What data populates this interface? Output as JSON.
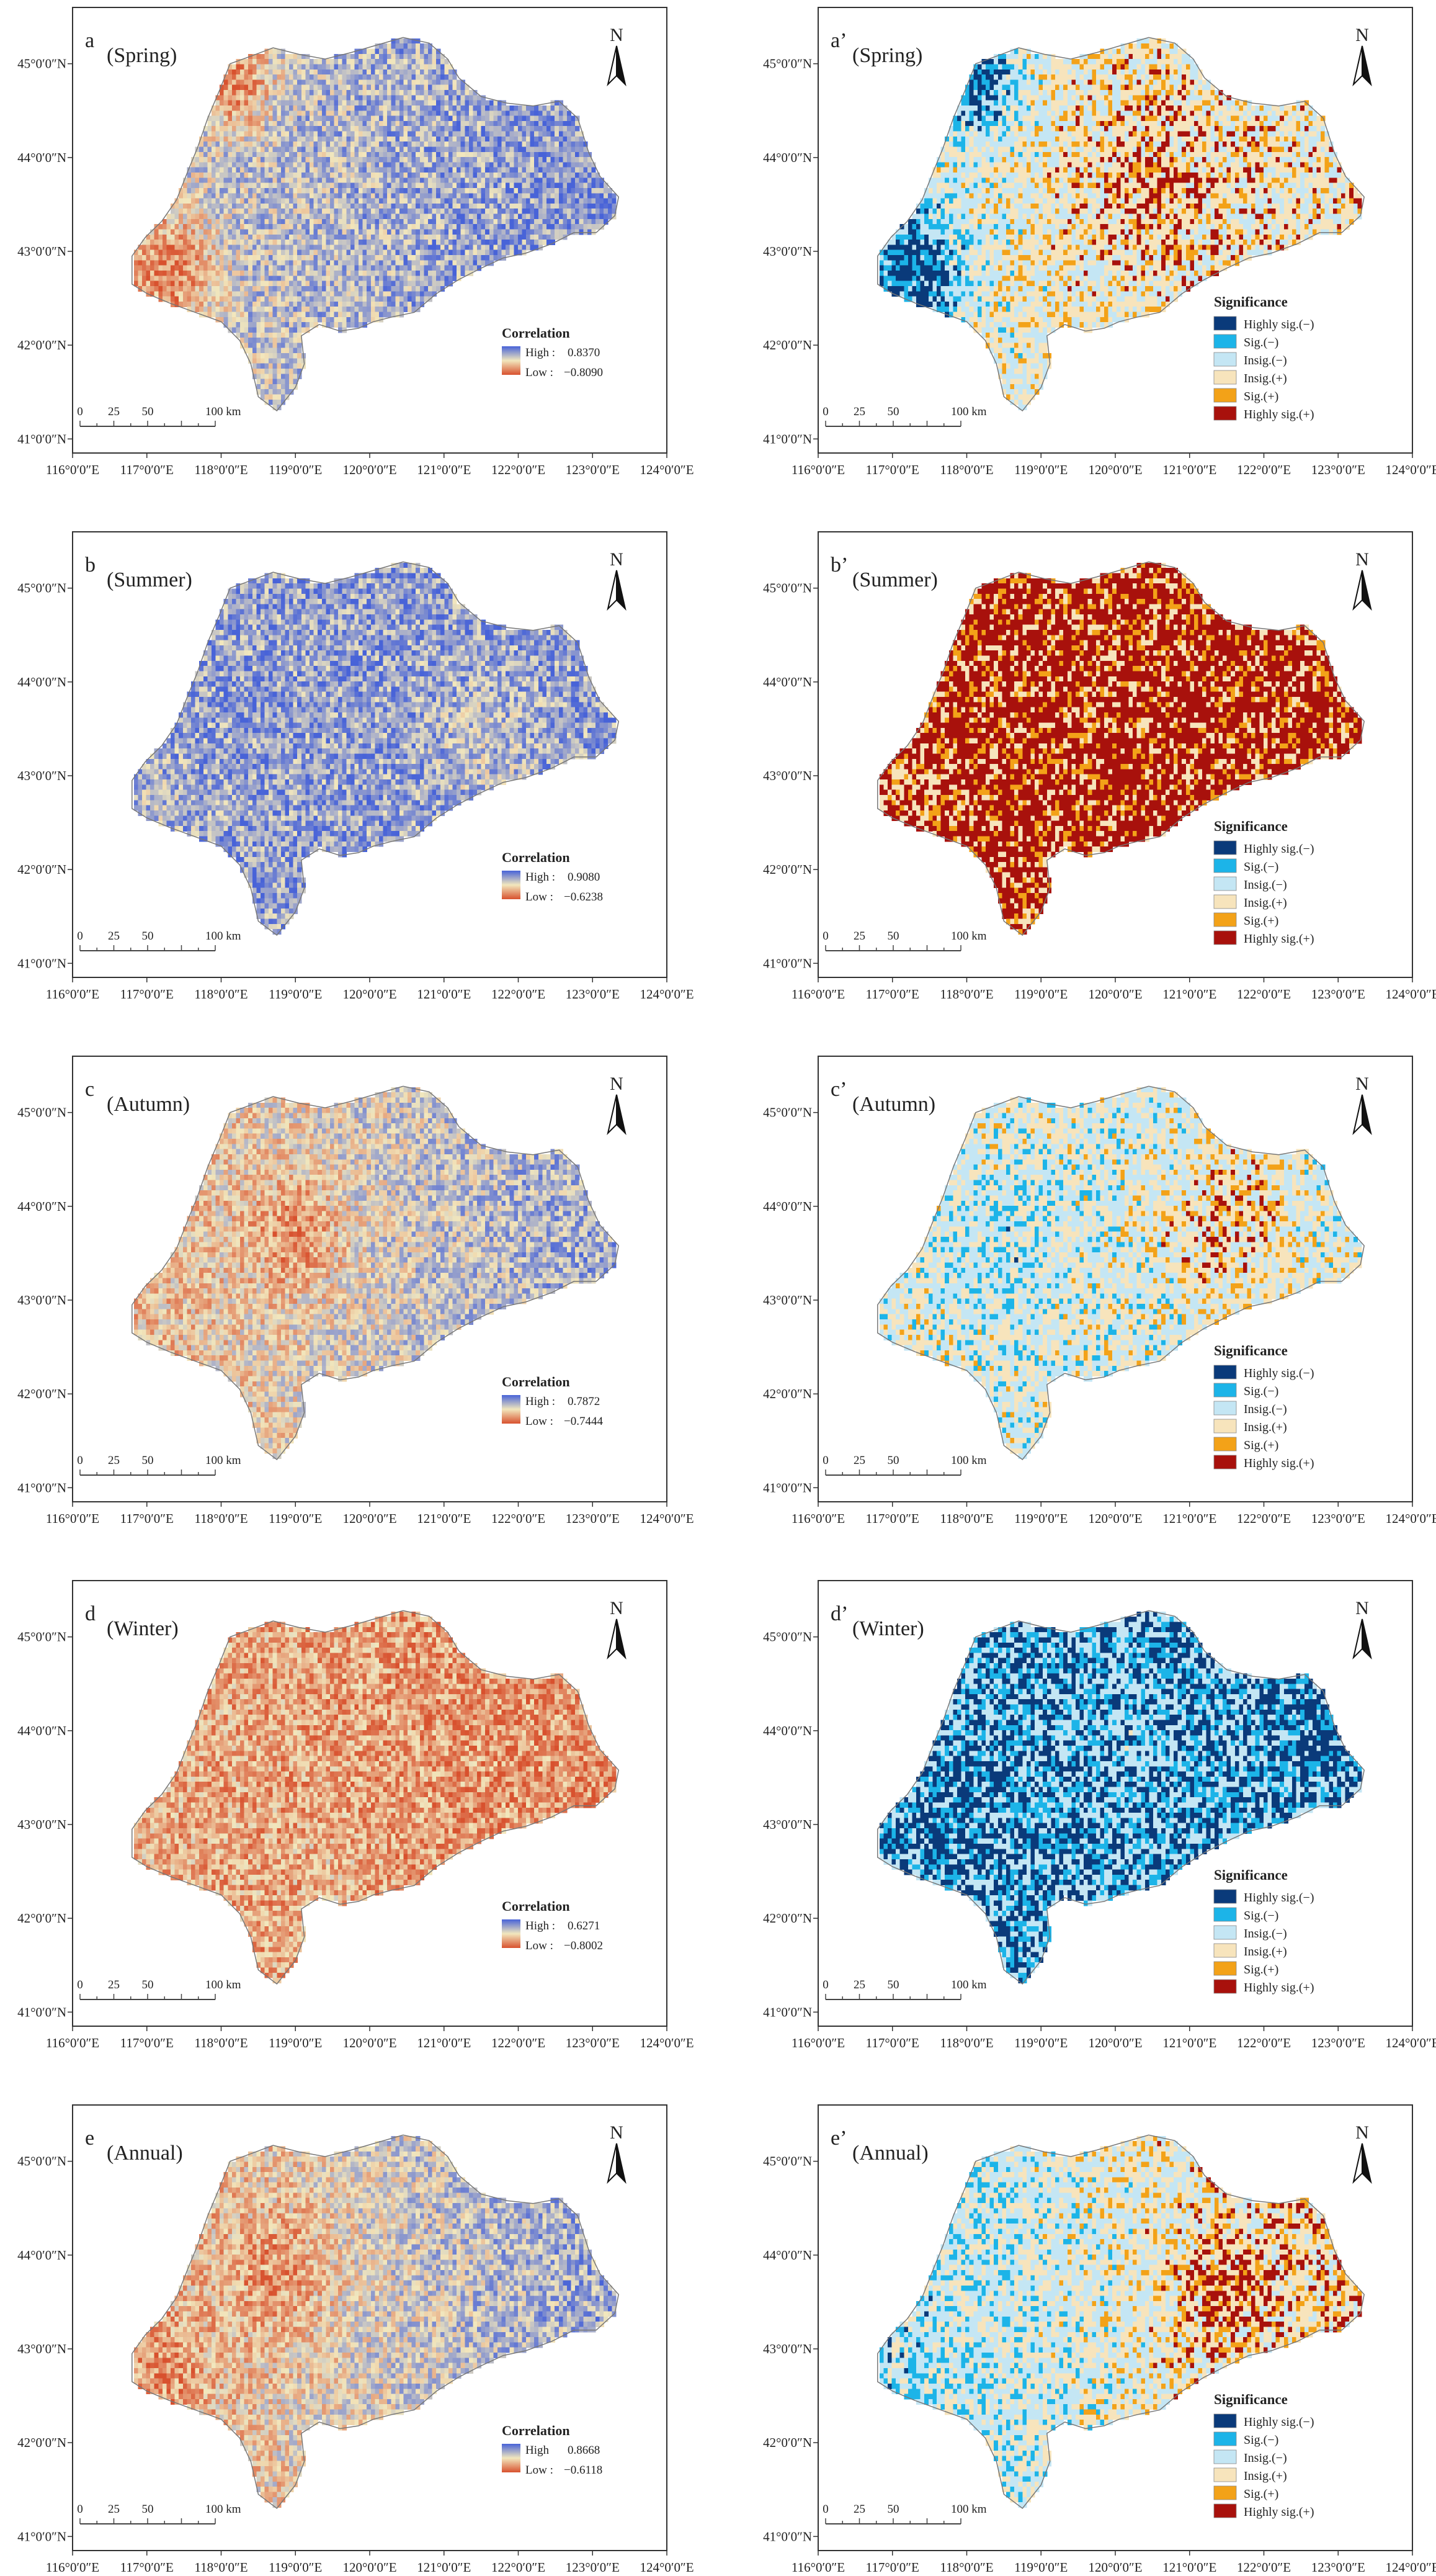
{
  "panels": [
    {
      "id": "a",
      "label": "a",
      "title": "(Spring)",
      "type": "correlation",
      "legend": {
        "title": "Correlation",
        "high_label": "High :",
        "high_value": "0.8370",
        "low_label": "Low :",
        "low_value": "−0.8090"
      },
      "pattern": "spring_corr"
    },
    {
      "id": "a2",
      "label": "a’",
      "title": "(Spring)",
      "type": "significance",
      "pattern": "spring_sig"
    },
    {
      "id": "b",
      "label": "b",
      "title": "(Summer)",
      "type": "correlation",
      "legend": {
        "title": "Correlation",
        "high_label": "High :",
        "high_value": "0.9080",
        "low_label": "Low :",
        "low_value": "−0.6238"
      },
      "pattern": "summer_corr"
    },
    {
      "id": "b2",
      "label": "b’",
      "title": "(Summer)",
      "type": "significance",
      "pattern": "summer_sig"
    },
    {
      "id": "c",
      "label": "c",
      "title": "(Autumn)",
      "type": "correlation",
      "legend": {
        "title": "Correlation",
        "high_label": "High :",
        "high_value": "0.7872",
        "low_label": "Low :",
        "low_value": "−0.7444"
      },
      "pattern": "autumn_corr"
    },
    {
      "id": "c2",
      "label": "c’",
      "title": "(Autumn)",
      "type": "significance",
      "pattern": "autumn_sig"
    },
    {
      "id": "d",
      "label": "d",
      "title": "(Winter)",
      "type": "correlation",
      "legend": {
        "title": "Correlation",
        "high_label": "High :",
        "high_value": "0.6271",
        "low_label": "Low :",
        "low_value": "−0.8002"
      },
      "pattern": "winter_corr"
    },
    {
      "id": "d2",
      "label": "d’",
      "title": "(Winter)",
      "type": "significance",
      "pattern": "winter_sig"
    },
    {
      "id": "e",
      "label": "e",
      "title": "(Annual)",
      "type": "correlation",
      "legend": {
        "title": "Correlation",
        "high_label": "High",
        "high_value": "0.8668",
        "low_label": "Low :",
        "low_value": "−0.6118"
      },
      "pattern": "annual_corr"
    },
    {
      "id": "e2",
      "label": "e’",
      "title": "(Annual)",
      "type": "significance",
      "pattern": "annual_sig"
    }
  ],
  "axes": {
    "x_ticks": [
      "116°0′0″E",
      "117°0′0″E",
      "118°0′0″E",
      "119°0′0″E",
      "120°0′0″E",
      "121°0′0″E",
      "122°0′0″E",
      "123°0′0″E",
      "124°0′0″E"
    ],
    "y_ticks": [
      "45°0′0″N",
      "44°0′0″N",
      "43°0′0″N",
      "42°0′0″N",
      "41°0′0″N"
    ]
  },
  "north_arrow": "N",
  "scale_bar": {
    "labels": [
      "0",
      "25",
      "50",
      "100 km"
    ],
    "values_km": [
      0,
      25,
      50,
      100
    ]
  },
  "significance_legend": {
    "title": "Significance",
    "items": [
      {
        "label": "Highly sig.(−)",
        "color": "#0a3a7a"
      },
      {
        "label": "Sig.(−)",
        "color": "#1cb4e8"
      },
      {
        "label": "Insig.(−)",
        "color": "#c4e6f4"
      },
      {
        "label": "Insig.(+)",
        "color": "#f7e4bc"
      },
      {
        "label": "Sig.(+)",
        "color": "#f3a218"
      },
      {
        "label": "Highly sig.(+)",
        "color": "#a8110c"
      }
    ]
  },
  "colors": {
    "corr_high": "#4863d8",
    "corr_mid": "#f2e7bd",
    "corr_low": "#d8512e",
    "frame": "#333333"
  }
}
